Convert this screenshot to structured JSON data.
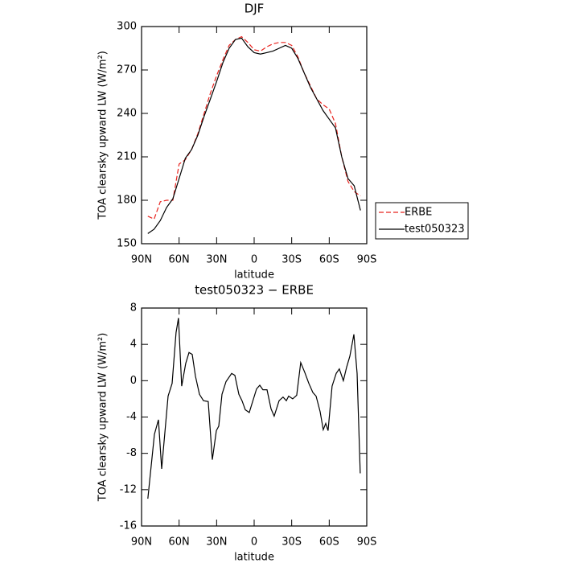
{
  "chart_data": [
    {
      "type": "line",
      "title": "DJF",
      "xlabel": "latitude",
      "ylabel": "TOA clearsky upward LW (W/m²)",
      "x": [
        85,
        80,
        75,
        70,
        65,
        60,
        55,
        50,
        45,
        40,
        35,
        30,
        25,
        20,
        15,
        10,
        5,
        0,
        -5,
        -10,
        -15,
        -20,
        -25,
        -30,
        -35,
        -40,
        -45,
        -50,
        -55,
        -60,
        -65,
        -70,
        -75,
        -80,
        -85
      ],
      "series": [
        {
          "name": "ERBE",
          "color": "#e8231e",
          "style": "dashed",
          "values": [
            169,
            167,
            179,
            180,
            180,
            205,
            208,
            215,
            226,
            240,
            254,
            266,
            277,
            287,
            291,
            293,
            289,
            284,
            283,
            286,
            288,
            289,
            289,
            287,
            279,
            268,
            259,
            250,
            246,
            243,
            233,
            210,
            193,
            186,
            183
          ]
        },
        {
          "name": "test050323",
          "color": "#000000",
          "style": "solid",
          "values": [
            157,
            160,
            166,
            175,
            181,
            195,
            209,
            215,
            225,
            238,
            250,
            262,
            275,
            285,
            291,
            292,
            286,
            282,
            281,
            282,
            283,
            285,
            287,
            285,
            278,
            268,
            258,
            250,
            242,
            236,
            230,
            210,
            195,
            190,
            173
          ]
        }
      ],
      "xlim": [
        90,
        -90
      ],
      "xticks": [
        {
          "value": 90,
          "label": "90N"
        },
        {
          "value": 60,
          "label": "60N"
        },
        {
          "value": 30,
          "label": "30N"
        },
        0,
        {
          "value": -30,
          "label": "30S"
        },
        {
          "value": -60,
          "label": "60S"
        },
        {
          "value": -90,
          "label": "90S"
        }
      ],
      "ylim": [
        150,
        300
      ],
      "yticks": [
        150,
        180,
        210,
        240,
        270,
        300
      ],
      "legend": "outside right"
    },
    {
      "type": "line",
      "title": "test050323 − ERBE",
      "xlabel": "latitude",
      "ylabel": "TOA clearsky upward LW (W/m²)",
      "x": [
        85,
        79.7,
        76.5,
        73.9,
        68.8,
        65.6,
        62.4,
        60.5,
        57.9,
        54.7,
        52.1,
        49.5,
        46.9,
        43.7,
        40.5,
        36.7,
        33.4,
        30.2,
        28.3,
        25.7,
        22.5,
        18,
        15.4,
        12.2,
        9.7,
        7.1,
        3.9,
        -1.9,
        -4.5,
        -7,
        -10.3,
        -13.5,
        -16,
        -19.9,
        -23.1,
        -25.7,
        -27.6,
        -30.8,
        -34,
        -37.2,
        -40.5,
        -43.7,
        -46.9,
        -49.5,
        -52.7,
        -55.2,
        -57.2,
        -59.1,
        -62.3,
        -65.6,
        -68.1,
        -71.3,
        -73.9,
        -76.5,
        -79.7,
        -82.3,
        -84.8
      ],
      "series": [
        {
          "name": "test050323 − ERBE",
          "color": "#000000",
          "style": "solid",
          "values": [
            -13,
            -5.9,
            -4.3,
            -9.7,
            -1.7,
            -0.3,
            5.3,
            6.9,
            -0.6,
            1.9,
            3.1,
            2.9,
            0.5,
            -1.5,
            -2.2,
            -2.3,
            -8.7,
            -5.5,
            -5,
            -1.5,
            -0.1,
            0.8,
            0.6,
            -1.5,
            -2.2,
            -3.2,
            -3.5,
            -0.9,
            -0.5,
            -1,
            -1,
            -3.1,
            -3.9,
            -2.2,
            -1.8,
            -2.2,
            -1.7,
            -2,
            -1.6,
            2,
            0.9,
            -0.3,
            -1.3,
            -1.7,
            -3.4,
            -5.4,
            -4.7,
            -5.5,
            -0.6,
            0.8,
            1.3,
            0,
            1.5,
            2.7,
            5.1,
            0.8,
            -10.2
          ]
        }
      ],
      "xlim": [
        90,
        -90
      ],
      "xticks": [
        {
          "value": 90,
          "label": "90N"
        },
        {
          "value": 60,
          "label": "60N"
        },
        {
          "value": 30,
          "label": "30N"
        },
        0,
        {
          "value": -30,
          "label": "30S"
        },
        {
          "value": -60,
          "label": "60S"
        },
        {
          "value": -90,
          "label": "90S"
        }
      ],
      "ylim": [
        -16,
        8
      ],
      "yticks": [
        -16,
        -12,
        -8,
        -4,
        0,
        4,
        8
      ]
    }
  ]
}
